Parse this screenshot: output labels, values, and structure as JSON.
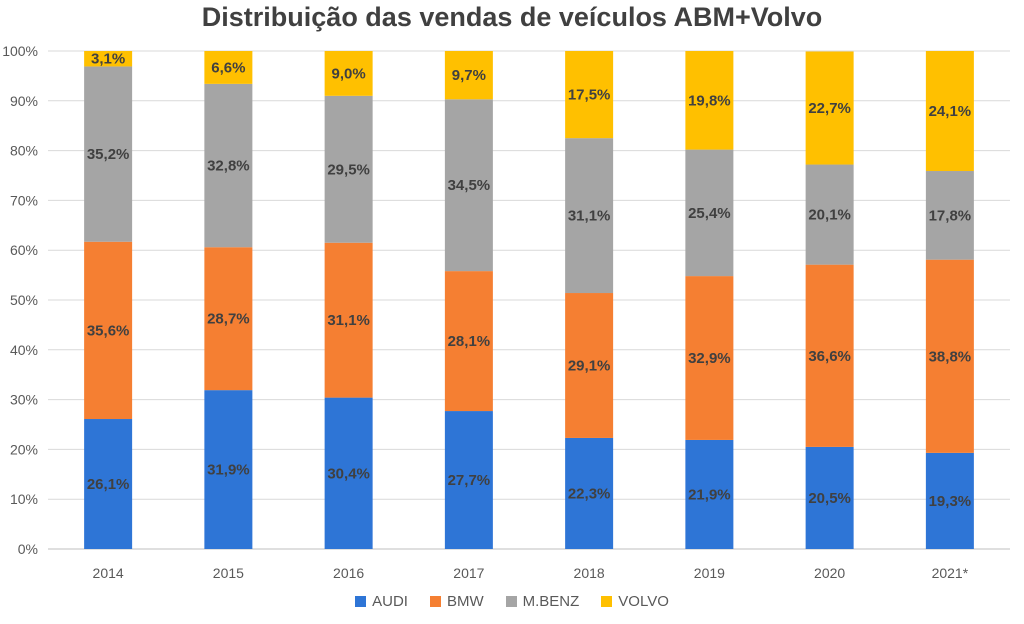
{
  "chart_data": {
    "type": "bar",
    "stacked": true,
    "title": "Distribuição das vendas de veículos ABM+Volvo",
    "categories": [
      "2014",
      "2015",
      "2016",
      "2017",
      "2018",
      "2019",
      "2020",
      "2021*"
    ],
    "ylim": [
      0,
      100
    ],
    "yticks": [
      "0%",
      "10%",
      "20%",
      "30%",
      "40%",
      "50%",
      "60%",
      "70%",
      "80%",
      "90%",
      "100%"
    ],
    "grid": true,
    "legend_position": "bottom",
    "series": [
      {
        "name": "AUDI",
        "color": "#2E75D6",
        "values": [
          26.1,
          31.9,
          30.4,
          27.7,
          22.3,
          21.9,
          20.5,
          19.3
        ],
        "labels": [
          "26,1%",
          "31,9%",
          "30,4%",
          "27,7%",
          "22,3%",
          "21,9%",
          "20,5%",
          "19,3%"
        ]
      },
      {
        "name": "BMW",
        "color": "#F57F32",
        "values": [
          35.6,
          28.7,
          31.1,
          28.1,
          29.1,
          32.9,
          36.6,
          38.8
        ],
        "labels": [
          "35,6%",
          "28,7%",
          "31,1%",
          "28,1%",
          "29,1%",
          "32,9%",
          "36,6%",
          "38,8%"
        ]
      },
      {
        "name": "M.BENZ",
        "color": "#A5A5A5",
        "values": [
          35.2,
          32.8,
          29.5,
          34.5,
          31.1,
          25.4,
          20.1,
          17.8
        ],
        "labels": [
          "35,2%",
          "32,8%",
          "29,5%",
          "34,5%",
          "31,1%",
          "25,4%",
          "20,1%",
          "17,8%"
        ]
      },
      {
        "name": "VOLVO",
        "color": "#FFC000",
        "values": [
          3.1,
          6.6,
          9.0,
          9.7,
          17.5,
          19.8,
          22.7,
          24.1
        ],
        "labels": [
          "3,1%",
          "6,6%",
          "9,0%",
          "9,7%",
          "17,5%",
          "19,8%",
          "22,7%",
          "24,1%"
        ]
      }
    ]
  }
}
